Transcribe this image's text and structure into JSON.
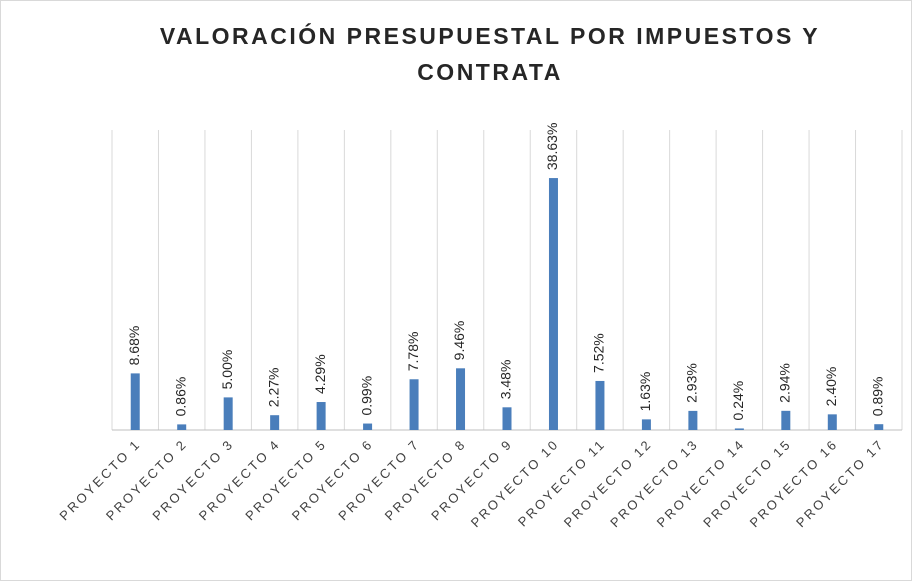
{
  "chart_data": {
    "type": "bar",
    "title": "VALORACIÓN PRESUPUESTAL POR IMPUESTOS Y CONTRATA",
    "categories": [
      "PROYECTO 1",
      "PROYECTO 2",
      "PROYECTO 3",
      "PROYECTO 4",
      "PROYECTO 5",
      "PROYECTO 6",
      "PROYECTO 7",
      "PROYECTO 8",
      "PROYECTO 9",
      "PROYECTO 10",
      "PROYECTO 11",
      "PROYECTO 12",
      "PROYECTO 13",
      "PROYECTO 14",
      "PROYECTO 15",
      "PROYECTO 16",
      "PROYECTO 17"
    ],
    "values": [
      8.68,
      0.86,
      5.0,
      2.27,
      4.29,
      0.99,
      7.78,
      9.46,
      3.48,
      38.63,
      7.52,
      1.63,
      2.93,
      0.24,
      2.94,
      2.4,
      0.89
    ],
    "value_labels": [
      "8.68%",
      "0.86%",
      "5.00%",
      "2.27%",
      "4.29%",
      "0.99%",
      "7.78%",
      "9.46%",
      "3.48%",
      "38.63%",
      "7.52%",
      "1.63%",
      "2.93%",
      "0.24%",
      "2.94%",
      "2.40%",
      "0.89%"
    ],
    "color": "#4a7ebb",
    "ylim": [
      0,
      46
    ],
    "grid": true
  }
}
